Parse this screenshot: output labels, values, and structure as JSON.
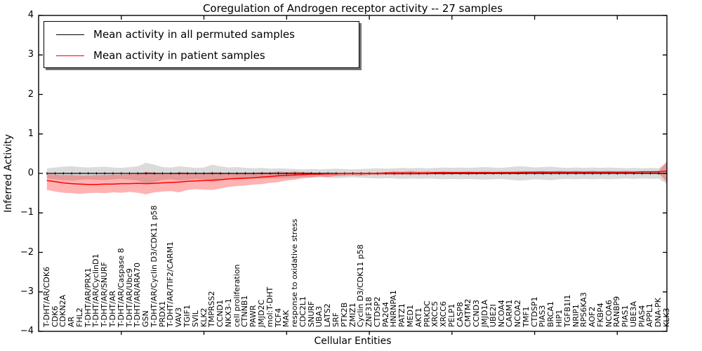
{
  "chart_data": {
    "type": "line",
    "title": "Coregulation of Androgen receptor activity -- 27 samples",
    "xlabel": "Cellular Entities",
    "ylabel": "Inferred Activity",
    "ylim": [
      -4,
      4
    ],
    "grid": false,
    "legend_position": "upper left",
    "x_tick_step": 10,
    "yticks": [
      {
        "label": "4",
        "value": 4
      },
      {
        "label": "3",
        "value": 3
      },
      {
        "label": "2",
        "value": 2
      },
      {
        "label": "1",
        "value": 1
      },
      {
        "label": "0",
        "value": 0
      },
      {
        "label": "−1",
        "value": -1
      },
      {
        "label": "−2",
        "value": -2
      },
      {
        "label": "−3",
        "value": -3
      },
      {
        "label": "−4",
        "value": -4
      }
    ],
    "legend": {
      "items": [
        {
          "label": "Mean activity in all permuted samples",
          "color": "#000000"
        },
        {
          "label": "Mean activity in patient samples",
          "color": "#ff0000"
        }
      ]
    },
    "categories": [
      "T-DHT/AR/CDK6",
      "CDK6",
      "CDKN2A",
      "AR",
      "FHL2",
      "T-DHT/AR/PRX1",
      "T-DHT/AR/CyclinD1",
      "T-DHT/AR/SNURF",
      "T-DHT/AR",
      "T-DHT/AR/Caspase 8",
      "T-DHT/AR/Ubc9",
      "T-DHT/AR/ARA70",
      "GSN",
      "T-DHT/AR/Cyclin D3/CDK11 p58",
      "PRDX1",
      "T-DHT/AR/TIF2/CARM1",
      "VAV3",
      "TGIF1",
      "SVIL",
      "KLK2",
      "TMPRSS2",
      "CCND1",
      "NKX3-1",
      "cell proliferation",
      "CTNNB1",
      "PAWR",
      "JMJD2C",
      "mol:T-DHT",
      "TCF4",
      "MAK",
      "response to oxidative stress",
      "CDC2L1",
      "SNURF",
      "UBA3",
      "LATS2",
      "SRF",
      "PTK2B",
      "ZMIZ1",
      "Cyclin D3/CDK11 p58",
      "ZNF318",
      "CTDSP2",
      "PA2G4",
      "HNRNPA1",
      "PATZ1",
      "MED1",
      "AKT1",
      "PRKDC",
      "XRCC5",
      "XRCC6",
      "PELP1",
      "CASP8",
      "CMTM2",
      "CCND3",
      "JMJD1A",
      "UBE2I",
      "NCOA4",
      "CARM1",
      "NCOA2",
      "TMF1",
      "CTDSP1",
      "PIAS3",
      "BRCA1",
      "HIP1",
      "TGFB1I1",
      "NRIP1",
      "RPS6KA3",
      "AOF2",
      "FKBP4",
      "NCOA6",
      "RANBP9",
      "PIAS1",
      "UBE3A",
      "PIAS4",
      "APPL1",
      "DNA-PK",
      "KLK3"
    ],
    "series": [
      {
        "name": "Mean activity in all permuted samples",
        "color": "#000000",
        "band_color": "#999999",
        "values": [
          0,
          0,
          0,
          0,
          0,
          0,
          0,
          0,
          0,
          0,
          0,
          0,
          0,
          0,
          0,
          0,
          0,
          0,
          0,
          0,
          0,
          0,
          0,
          0,
          0,
          0,
          0,
          0,
          0,
          0,
          0,
          0,
          0,
          0,
          0,
          0,
          0,
          0,
          0,
          0,
          0,
          0,
          0,
          0,
          0,
          0,
          0,
          0,
          0,
          0,
          0,
          0,
          0,
          0,
          0,
          0,
          0,
          0,
          0,
          0,
          0,
          0,
          0,
          0,
          0,
          0,
          0,
          0,
          0,
          0,
          0,
          0,
          0,
          0,
          0,
          0
        ],
        "std": [
          0.13,
          0.15,
          0.17,
          0.18,
          0.16,
          0.15,
          0.16,
          0.17,
          0.15,
          0.14,
          0.16,
          0.18,
          0.27,
          0.22,
          0.16,
          0.15,
          0.18,
          0.16,
          0.14,
          0.15,
          0.22,
          0.18,
          0.15,
          0.16,
          0.14,
          0.13,
          0.14,
          0.12,
          0.13,
          0.12,
          0.11,
          0.1,
          0.11,
          0.1,
          0.11,
          0.12,
          0.11,
          0.1,
          0.11,
          0.12,
          0.13,
          0.12,
          0.13,
          0.14,
          0.13,
          0.14,
          0.13,
          0.14,
          0.15,
          0.14,
          0.15,
          0.14,
          0.15,
          0.16,
          0.15,
          0.14,
          0.16,
          0.18,
          0.17,
          0.15,
          0.16,
          0.17,
          0.15,
          0.14,
          0.15,
          0.14,
          0.15,
          0.14,
          0.15,
          0.14,
          0.13,
          0.14,
          0.13,
          0.14,
          0.13,
          0.27
        ]
      },
      {
        "name": "Mean activity in patient samples",
        "color": "#ff0000",
        "band_color": "#ff0000",
        "values": [
          -0.18,
          -0.21,
          -0.24,
          -0.26,
          -0.27,
          -0.28,
          -0.28,
          -0.27,
          -0.27,
          -0.26,
          -0.26,
          -0.25,
          -0.26,
          -0.25,
          -0.24,
          -0.23,
          -0.22,
          -0.2,
          -0.19,
          -0.18,
          -0.17,
          -0.16,
          -0.14,
          -0.13,
          -0.12,
          -0.11,
          -0.09,
          -0.08,
          -0.06,
          -0.05,
          -0.04,
          -0.03,
          -0.02,
          -0.02,
          -0.01,
          -0.01,
          0.0,
          0.0,
          0.0,
          0.0,
          0.0,
          0.01,
          0.01,
          0.01,
          0.01,
          0.01,
          0.01,
          0.02,
          0.02,
          0.02,
          0.02,
          0.02,
          0.02,
          0.02,
          0.02,
          0.02,
          0.02,
          0.02,
          0.03,
          0.03,
          0.03,
          0.03,
          0.03,
          0.03,
          0.03,
          0.03,
          0.03,
          0.03,
          0.03,
          0.03,
          0.03,
          0.03,
          0.04,
          0.04,
          0.04,
          0.06
        ],
        "band_upper": [
          -0.02,
          -0.03,
          -0.04,
          -0.04,
          -0.05,
          -0.05,
          -0.04,
          -0.04,
          -0.03,
          -0.03,
          -0.02,
          -0.02,
          0.04,
          0.02,
          -0.02,
          -0.01,
          0.03,
          0.02,
          -0.01,
          0.0,
          0.03,
          0.02,
          0.0,
          0.01,
          0.02,
          0.01,
          0.03,
          0.02,
          0.05,
          0.03,
          0.05,
          0.03,
          0.02,
          0.01,
          0.02,
          0.01,
          0.01,
          0.01,
          0.02,
          0.01,
          0.02,
          0.03,
          0.05,
          0.04,
          0.06,
          0.04,
          0.05,
          0.04,
          0.05,
          0.04,
          0.04,
          0.05,
          0.04,
          0.05,
          0.04,
          0.05,
          0.05,
          0.06,
          0.05,
          0.05,
          0.06,
          0.05,
          0.06,
          0.05,
          0.06,
          0.05,
          0.06,
          0.05,
          0.06,
          0.05,
          0.06,
          0.05,
          0.06,
          0.06,
          0.07,
          0.3
        ],
        "band_lower": [
          -0.42,
          -0.46,
          -0.49,
          -0.5,
          -0.52,
          -0.5,
          -0.49,
          -0.5,
          -0.48,
          -0.49,
          -0.47,
          -0.49,
          -0.53,
          -0.48,
          -0.46,
          -0.45,
          -0.48,
          -0.42,
          -0.4,
          -0.41,
          -0.42,
          -0.38,
          -0.34,
          -0.32,
          -0.31,
          -0.28,
          -0.27,
          -0.24,
          -0.22,
          -0.18,
          -0.16,
          -0.12,
          -0.1,
          -0.08,
          -0.09,
          -0.07,
          -0.06,
          -0.05,
          -0.06,
          -0.04,
          -0.04,
          -0.03,
          -0.04,
          -0.03,
          -0.04,
          -0.03,
          -0.03,
          -0.02,
          -0.03,
          -0.02,
          -0.02,
          -0.03,
          -0.02,
          -0.02,
          -0.01,
          -0.02,
          -0.01,
          -0.02,
          -0.01,
          -0.01,
          -0.02,
          -0.01,
          -0.01,
          0.0,
          -0.01,
          0.0,
          -0.01,
          0.0,
          -0.01,
          0.0,
          0.0,
          -0.01,
          0.0,
          0.0,
          0.0,
          -0.22
        ]
      }
    ]
  }
}
